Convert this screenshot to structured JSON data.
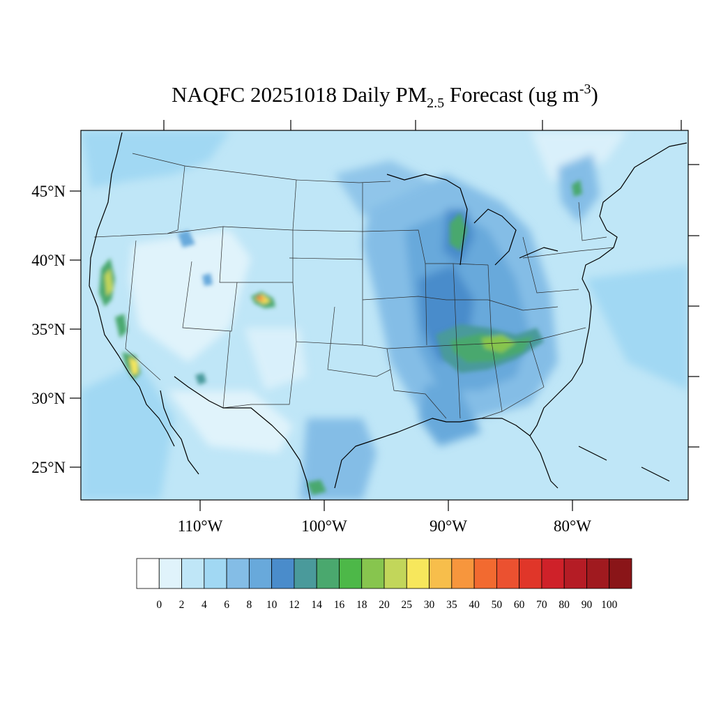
{
  "title": {
    "prefix": "NAQFC 20251018 Daily PM",
    "subscript": "2.5",
    "middle": " Forecast (ug m",
    "superscript": "-3",
    "suffix": ")"
  },
  "map": {
    "lat_labels": [
      "45°N",
      "40°N",
      "35°N",
      "30°N",
      "25°N"
    ],
    "lon_labels": [
      "110°W",
      "100°W",
      "90°W",
      "80°W"
    ]
  },
  "colorbar": {
    "colors": [
      "#ffffff",
      "#e0f3fb",
      "#bfe6f7",
      "#a1d8f3",
      "#84bde6",
      "#68a9db",
      "#4a8ccb",
      "#4a9a9b",
      "#4aa86e",
      "#4db848",
      "#87c54e",
      "#c2d65a",
      "#f7e75c",
      "#f7be4b",
      "#f7963d",
      "#f26a30",
      "#eb5130",
      "#e03629",
      "#cf2129",
      "#b51c25",
      "#a01a1f",
      "#8a1518"
    ],
    "labels": [
      "0",
      "2",
      "4",
      "6",
      "8",
      "10",
      "12",
      "14",
      "16",
      "18",
      "20",
      "25",
      "30",
      "35",
      "40",
      "50",
      "60",
      "70",
      "80",
      "90",
      "100"
    ]
  },
  "palette": {
    "background_fill": "#bfe6f7",
    "low": "#e0f3fb",
    "mid": "#a1d8f3",
    "blue": "#84bde6",
    "darkblue": "#68a9db",
    "deep": "#4a8ccb",
    "teal": "#4a9a9b",
    "green": "#4aa86e",
    "bright_green": "#4db848",
    "yellow_green": "#c2d65a",
    "yellow": "#f7e75c",
    "orange": "#f7963d",
    "red": "#e03629"
  }
}
